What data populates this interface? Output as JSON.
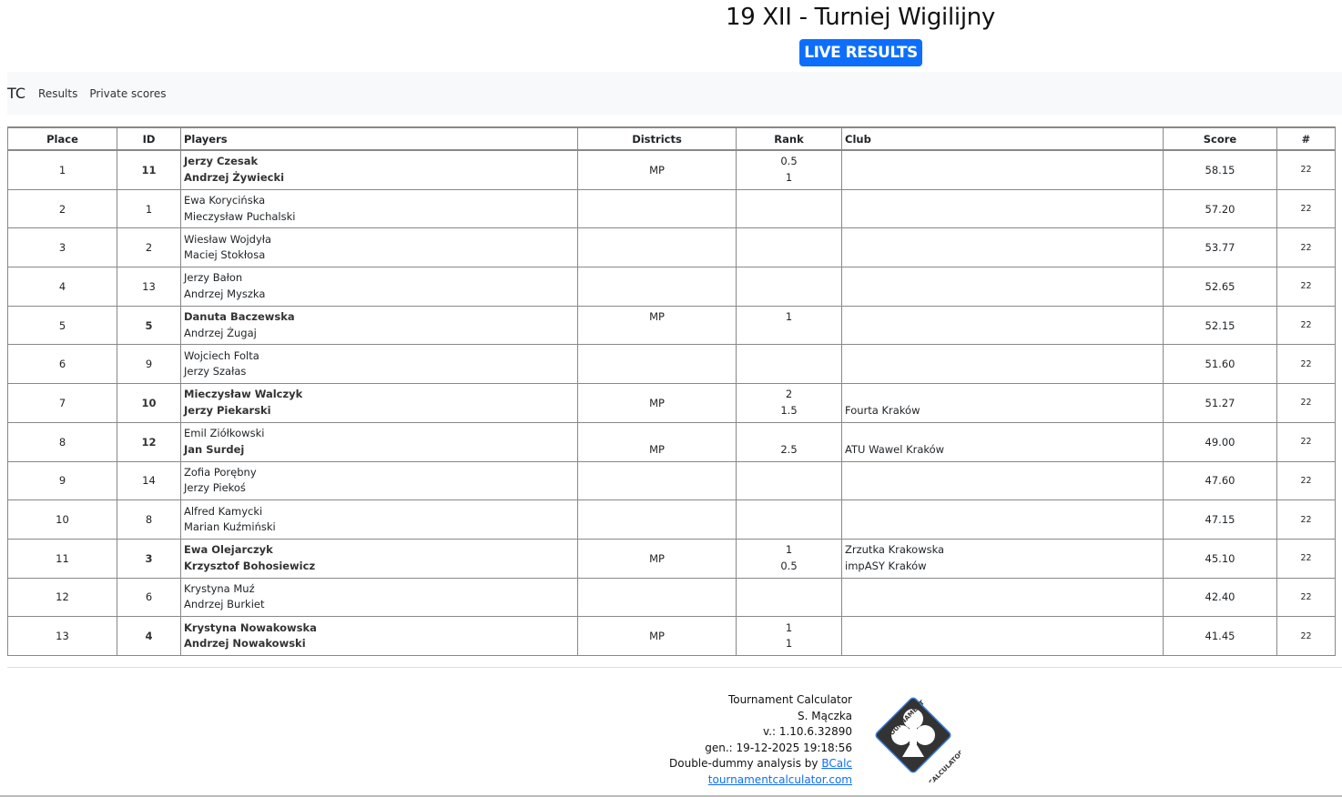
{
  "header": {
    "title": "19 XII - Turniej Wigilijny",
    "live_label": "LIVE RESULTS"
  },
  "nav": {
    "brand": "TC",
    "links": [
      "Results",
      "Private scores"
    ]
  },
  "table": {
    "columns": [
      "Place",
      "ID",
      "Players",
      "Districts",
      "Rank",
      "Club",
      "Score",
      "#"
    ],
    "rows": [
      {
        "place": "1",
        "id": "11",
        "players": [
          {
            "name": "Jerzy Czesak",
            "bold": true
          },
          {
            "name": "Andrzej Żywiecki",
            "bold": true
          }
        ],
        "districts": [
          "MP",
          "MP"
        ],
        "ranks": [
          "0.5",
          "1"
        ],
        "clubs": [
          "",
          ""
        ],
        "score": "58.15",
        "boards": "22"
      },
      {
        "place": "2",
        "id": "1",
        "players": [
          {
            "name": "Ewa Korycińska",
            "bold": false
          },
          {
            "name": "Mieczysław Puchalski",
            "bold": false
          }
        ],
        "districts": [
          "",
          ""
        ],
        "ranks": [
          "",
          ""
        ],
        "clubs": [
          "",
          ""
        ],
        "score": "57.20",
        "boards": "22"
      },
      {
        "place": "3",
        "id": "2",
        "players": [
          {
            "name": "Wiesław Wojdyła",
            "bold": false
          },
          {
            "name": "Maciej Stokłosa",
            "bold": false
          }
        ],
        "districts": [
          "",
          ""
        ],
        "ranks": [
          "",
          ""
        ],
        "clubs": [
          "",
          ""
        ],
        "score": "53.77",
        "boards": "22"
      },
      {
        "place": "4",
        "id": "13",
        "players": [
          {
            "name": "Jerzy Bałon",
            "bold": false
          },
          {
            "name": "Andrzej Myszka",
            "bold": false
          }
        ],
        "districts": [
          "",
          ""
        ],
        "ranks": [
          "",
          ""
        ],
        "clubs": [
          "",
          ""
        ],
        "score": "52.65",
        "boards": "22"
      },
      {
        "place": "5",
        "id": "5",
        "players": [
          {
            "name": "Danuta Baczewska",
            "bold": true
          },
          {
            "name": "Andrzej Żugaj",
            "bold": false
          }
        ],
        "districts": [
          "MP",
          ""
        ],
        "ranks": [
          "1",
          ""
        ],
        "clubs": [
          "",
          ""
        ],
        "score": "52.15",
        "boards": "22"
      },
      {
        "place": "6",
        "id": "9",
        "players": [
          {
            "name": "Wojciech Folta",
            "bold": false
          },
          {
            "name": "Jerzy Szałas",
            "bold": false
          }
        ],
        "districts": [
          "",
          ""
        ],
        "ranks": [
          "",
          ""
        ],
        "clubs": [
          "",
          ""
        ],
        "score": "51.60",
        "boards": "22"
      },
      {
        "place": "7",
        "id": "10",
        "players": [
          {
            "name": "Mieczysław Walczyk",
            "bold": true
          },
          {
            "name": "Jerzy Piekarski",
            "bold": true
          }
        ],
        "districts": [
          "MP",
          "MP"
        ],
        "ranks": [
          "2",
          "1.5"
        ],
        "clubs": [
          "",
          "Fourta Kraków"
        ],
        "score": "51.27",
        "boards": "22"
      },
      {
        "place": "8",
        "id": "12",
        "players": [
          {
            "name": "Emil Ziółkowski",
            "bold": false
          },
          {
            "name": "Jan Surdej",
            "bold": true
          }
        ],
        "districts": [
          "",
          "MP"
        ],
        "ranks": [
          "",
          "2.5"
        ],
        "clubs": [
          "",
          "ATU Wawel Kraków"
        ],
        "score": "49.00",
        "boards": "22"
      },
      {
        "place": "9",
        "id": "14",
        "players": [
          {
            "name": "Zofia Porębny",
            "bold": false
          },
          {
            "name": "Jerzy Piekoś",
            "bold": false
          }
        ],
        "districts": [
          "",
          ""
        ],
        "ranks": [
          "",
          ""
        ],
        "clubs": [
          "",
          ""
        ],
        "score": "47.60",
        "boards": "22"
      },
      {
        "place": "10",
        "id": "8",
        "players": [
          {
            "name": "Alfred Kamycki",
            "bold": false
          },
          {
            "name": "Marian Kuźmiński",
            "bold": false
          }
        ],
        "districts": [
          "",
          ""
        ],
        "ranks": [
          "",
          ""
        ],
        "clubs": [
          "",
          ""
        ],
        "score": "47.15",
        "boards": "22"
      },
      {
        "place": "11",
        "id": "3",
        "players": [
          {
            "name": "Ewa Olejarczyk",
            "bold": true
          },
          {
            "name": "Krzysztof Bohosiewicz",
            "bold": true
          }
        ],
        "districts": [
          "MP",
          "MP"
        ],
        "ranks": [
          "1",
          "0.5"
        ],
        "clubs": [
          "Zrzutka Krakowska",
          "impASY Kraków"
        ],
        "score": "45.10",
        "boards": "22"
      },
      {
        "place": "12",
        "id": "6",
        "players": [
          {
            "name": "Krystyna Muź",
            "bold": false
          },
          {
            "name": "Andrzej Burkiet",
            "bold": false
          }
        ],
        "districts": [
          "",
          ""
        ],
        "ranks": [
          "",
          ""
        ],
        "clubs": [
          "",
          ""
        ],
        "score": "42.40",
        "boards": "22"
      },
      {
        "place": "13",
        "id": "4",
        "players": [
          {
            "name": "Krystyna Nowakowska",
            "bold": true
          },
          {
            "name": "Andrzej Nowakowski",
            "bold": true
          }
        ],
        "districts": [
          "MP",
          "MP"
        ],
        "ranks": [
          "1",
          "1"
        ],
        "clubs": [
          "",
          ""
        ],
        "score": "41.45",
        "boards": "22"
      }
    ]
  },
  "footer": {
    "lines": [
      "Tournament Calculator",
      "S. Mączka",
      "v.: 1.10.6.32890",
      "gen.: 19-12-2025 19:18:56"
    ],
    "dd_prefix": "Double-dummy analysis by ",
    "dd_link": "BCalc",
    "site_link": "tournamentcalculator.com",
    "logo_text_top": "TOURNAMENT",
    "logo_text_bottom": "CALCULATOR"
  },
  "colors": {
    "accent": "#0d6efd",
    "nav_bg": "#f8f9fa",
    "logo_dark": "#333333"
  }
}
